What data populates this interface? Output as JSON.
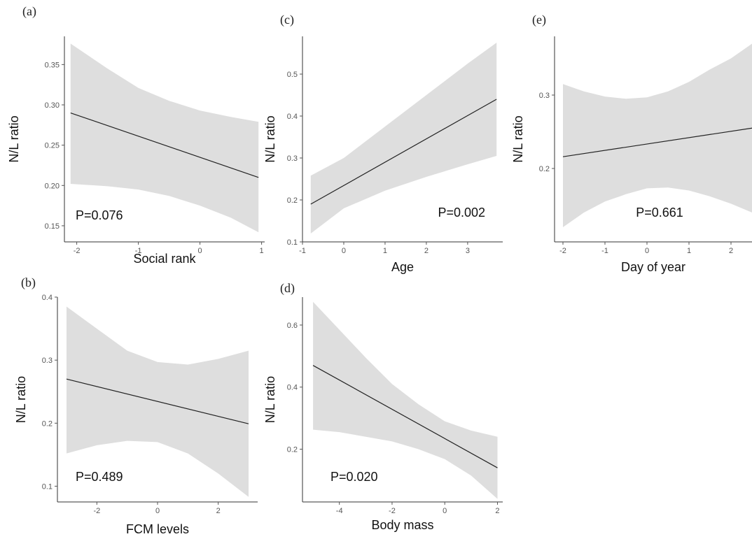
{
  "chart_data": [
    {
      "id": "a",
      "type": "line",
      "panel_label": "(a)",
      "xlabel": "Social rank",
      "ylabel": "N/L ratio",
      "annotation": "P=0.076",
      "xlim": [
        -2.2,
        1.05
      ],
      "ylim": [
        0.13,
        0.385
      ],
      "xticks": [
        -2,
        -1,
        0,
        1
      ],
      "yticks": [
        0.15,
        0.2,
        0.25,
        0.3,
        0.35
      ],
      "ytick_labels": [
        "0.15",
        "0.20",
        "0.25",
        "0.30",
        "0.35"
      ],
      "fit": {
        "x": [
          -2.1,
          0.95
        ],
        "y": [
          0.29,
          0.21
        ]
      },
      "ci_band": {
        "x": [
          -2.1,
          -1.5,
          -1,
          -0.5,
          0,
          0.5,
          0.95
        ],
        "upper": [
          0.376,
          0.345,
          0.321,
          0.305,
          0.293,
          0.285,
          0.279
        ],
        "lower": [
          0.202,
          0.199,
          0.195,
          0.187,
          0.175,
          0.16,
          0.142
        ]
      }
    },
    {
      "id": "c",
      "type": "line",
      "panel_label": "(c)",
      "xlabel": "Age",
      "ylabel": "N/L ratio",
      "annotation": "P=0.002",
      "xlim": [
        -1,
        3.85
      ],
      "ylim": [
        0.1,
        0.59
      ],
      "xticks": [
        -1,
        0,
        1,
        2,
        3
      ],
      "yticks": [
        0.1,
        0.2,
        0.3,
        0.4,
        0.5
      ],
      "ytick_labels": [
        "0.1",
        "0.2",
        "0.3",
        "0.4",
        "0.5"
      ],
      "fit": {
        "x": [
          -0.8,
          3.7
        ],
        "y": [
          0.19,
          0.44
        ]
      },
      "ci_band": {
        "x": [
          -0.8,
          0,
          1,
          2,
          3,
          3.7
        ],
        "upper": [
          0.258,
          0.3,
          0.375,
          0.45,
          0.525,
          0.575
        ],
        "lower": [
          0.12,
          0.18,
          0.222,
          0.255,
          0.285,
          0.305
        ]
      }
    },
    {
      "id": "e",
      "type": "line",
      "panel_label": "(e)",
      "xlabel": "Day of year",
      "ylabel": "N/L ratio",
      "annotation": "P=0.661",
      "xlim": [
        -2.2,
        2.5
      ],
      "ylim": [
        0.1,
        0.38
      ],
      "xticks": [
        -2,
        -1,
        0,
        1,
        2
      ],
      "yticks": [
        0.2,
        0.3
      ],
      "ytick_labels": [
        "0.2",
        "0.3"
      ],
      "fit": {
        "x": [
          -2,
          2.5
        ],
        "y": [
          0.216,
          0.255
        ]
      },
      "ci_band": {
        "x": [
          -2,
          -1.5,
          -1,
          -0.5,
          0,
          0.5,
          1,
          1.5,
          2,
          2.5
        ],
        "upper": [
          0.315,
          0.305,
          0.298,
          0.295,
          0.297,
          0.305,
          0.318,
          0.335,
          0.35,
          0.37
        ],
        "lower": [
          0.12,
          0.14,
          0.155,
          0.165,
          0.173,
          0.174,
          0.17,
          0.162,
          0.152,
          0.14
        ]
      }
    },
    {
      "id": "b",
      "type": "line",
      "panel_label": "(b)",
      "xlabel": "FCM levels",
      "ylabel": "N/L ratio",
      "annotation": "P=0.489",
      "xlim": [
        -3.3,
        3.3
      ],
      "ylim": [
        0.075,
        0.4
      ],
      "xticks": [
        -2,
        0,
        2
      ],
      "yticks": [
        0.1,
        0.2,
        0.3,
        0.4
      ],
      "ytick_labels": [
        "0.1",
        "0.2",
        "0.3",
        "0.4"
      ],
      "fit": {
        "x": [
          -3,
          3
        ],
        "y": [
          0.27,
          0.199
        ]
      },
      "ci_band": {
        "x": [
          -3,
          -2,
          -1,
          0,
          1,
          2,
          3
        ],
        "upper": [
          0.385,
          0.35,
          0.315,
          0.297,
          0.293,
          0.302,
          0.315
        ],
        "lower": [
          0.152,
          0.165,
          0.172,
          0.17,
          0.152,
          0.12,
          0.083
        ]
      }
    },
    {
      "id": "d",
      "type": "line",
      "panel_label": "(d)",
      "xlabel": "Body mass",
      "ylabel": "N/L ratio",
      "annotation": "P=0.020",
      "xlim": [
        -5.4,
        2.2
      ],
      "ylim": [
        0.03,
        0.69
      ],
      "xticks": [
        -4,
        -2,
        0,
        2
      ],
      "yticks": [
        0.2,
        0.4,
        0.6
      ],
      "ytick_labels": [
        "0.2",
        "0.4",
        "0.6"
      ],
      "fit": {
        "x": [
          -5,
          2
        ],
        "y": [
          0.47,
          0.14
        ]
      },
      "ci_band": {
        "x": [
          -5,
          -4,
          -3,
          -2,
          -1,
          0,
          1,
          2
        ],
        "upper": [
          0.675,
          0.585,
          0.495,
          0.41,
          0.345,
          0.29,
          0.26,
          0.24
        ],
        "lower": [
          0.263,
          0.255,
          0.24,
          0.225,
          0.2,
          0.168,
          0.115,
          0.04
        ]
      }
    }
  ]
}
